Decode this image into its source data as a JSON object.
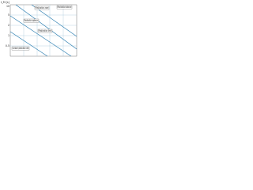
{
  "axes": {
    "y_label": "t_M [s]",
    "y_ticks": [
      "10",
      "5",
      "2",
      "1",
      "0.5"
    ]
  },
  "labels": [
    "Plastication zone",
    "Plastication balance",
    "Plastication optimum",
    "Plastication limit",
    "Constant plastication rate"
  ]
}
